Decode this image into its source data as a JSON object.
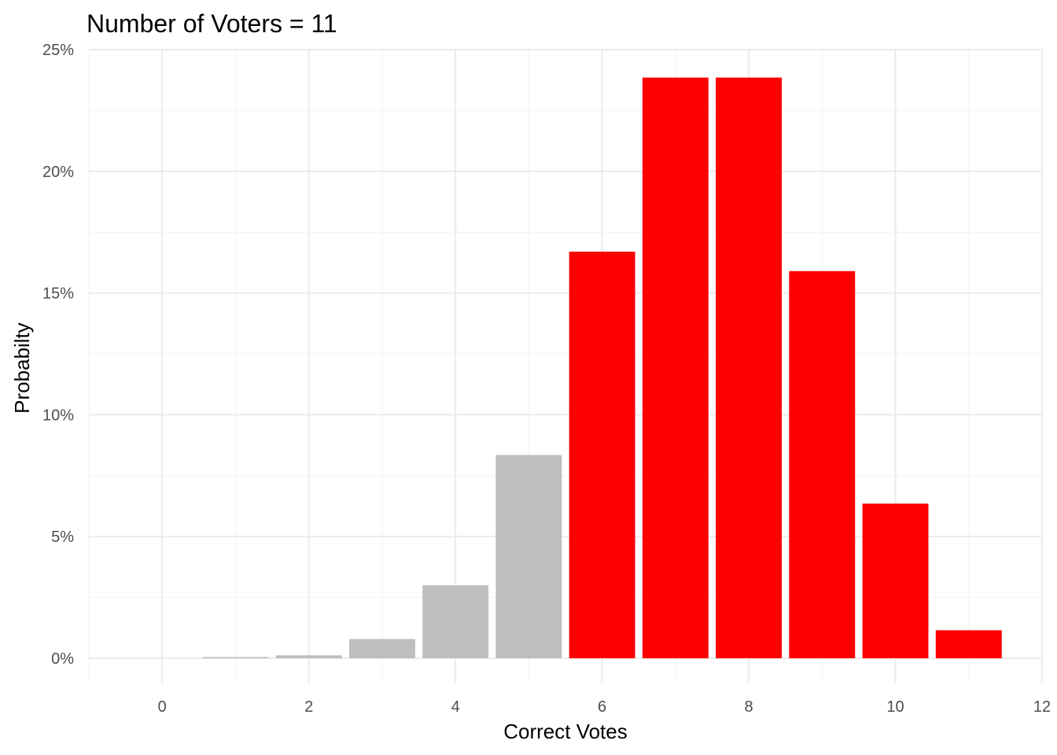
{
  "chart_data": {
    "type": "bar",
    "title": "Number of Voters = 11",
    "xlabel": "Correct Votes",
    "ylabel": "Probabilty",
    "x": [
      0,
      1,
      2,
      3,
      4,
      5,
      6,
      7,
      8,
      9,
      10,
      11
    ],
    "values": [
      0.0,
      0.05,
      0.12,
      0.79,
      3.0,
      8.35,
      16.7,
      23.85,
      23.85,
      15.9,
      6.35,
      1.15
    ],
    "value_unit": "percent",
    "colors": [
      "#bebebe",
      "#bebebe",
      "#bebebe",
      "#bebebe",
      "#bebebe",
      "#bebebe",
      "#ff0000",
      "#ff0000",
      "#ff0000",
      "#ff0000",
      "#ff0000",
      "#ff0000"
    ],
    "xlim": [
      -1,
      12
    ],
    "ylim": [
      0,
      25
    ],
    "x_ticks": [
      0,
      2,
      4,
      6,
      8,
      10,
      12
    ],
    "x_tick_labels": [
      "0",
      "2",
      "4",
      "6",
      "8",
      "10",
      "12"
    ],
    "y_ticks": [
      0,
      5,
      10,
      15,
      20,
      25
    ],
    "y_tick_labels": [
      "0%",
      "5%",
      "10%",
      "15%",
      "20%",
      "25%"
    ],
    "grid": true,
    "legend": "none"
  }
}
